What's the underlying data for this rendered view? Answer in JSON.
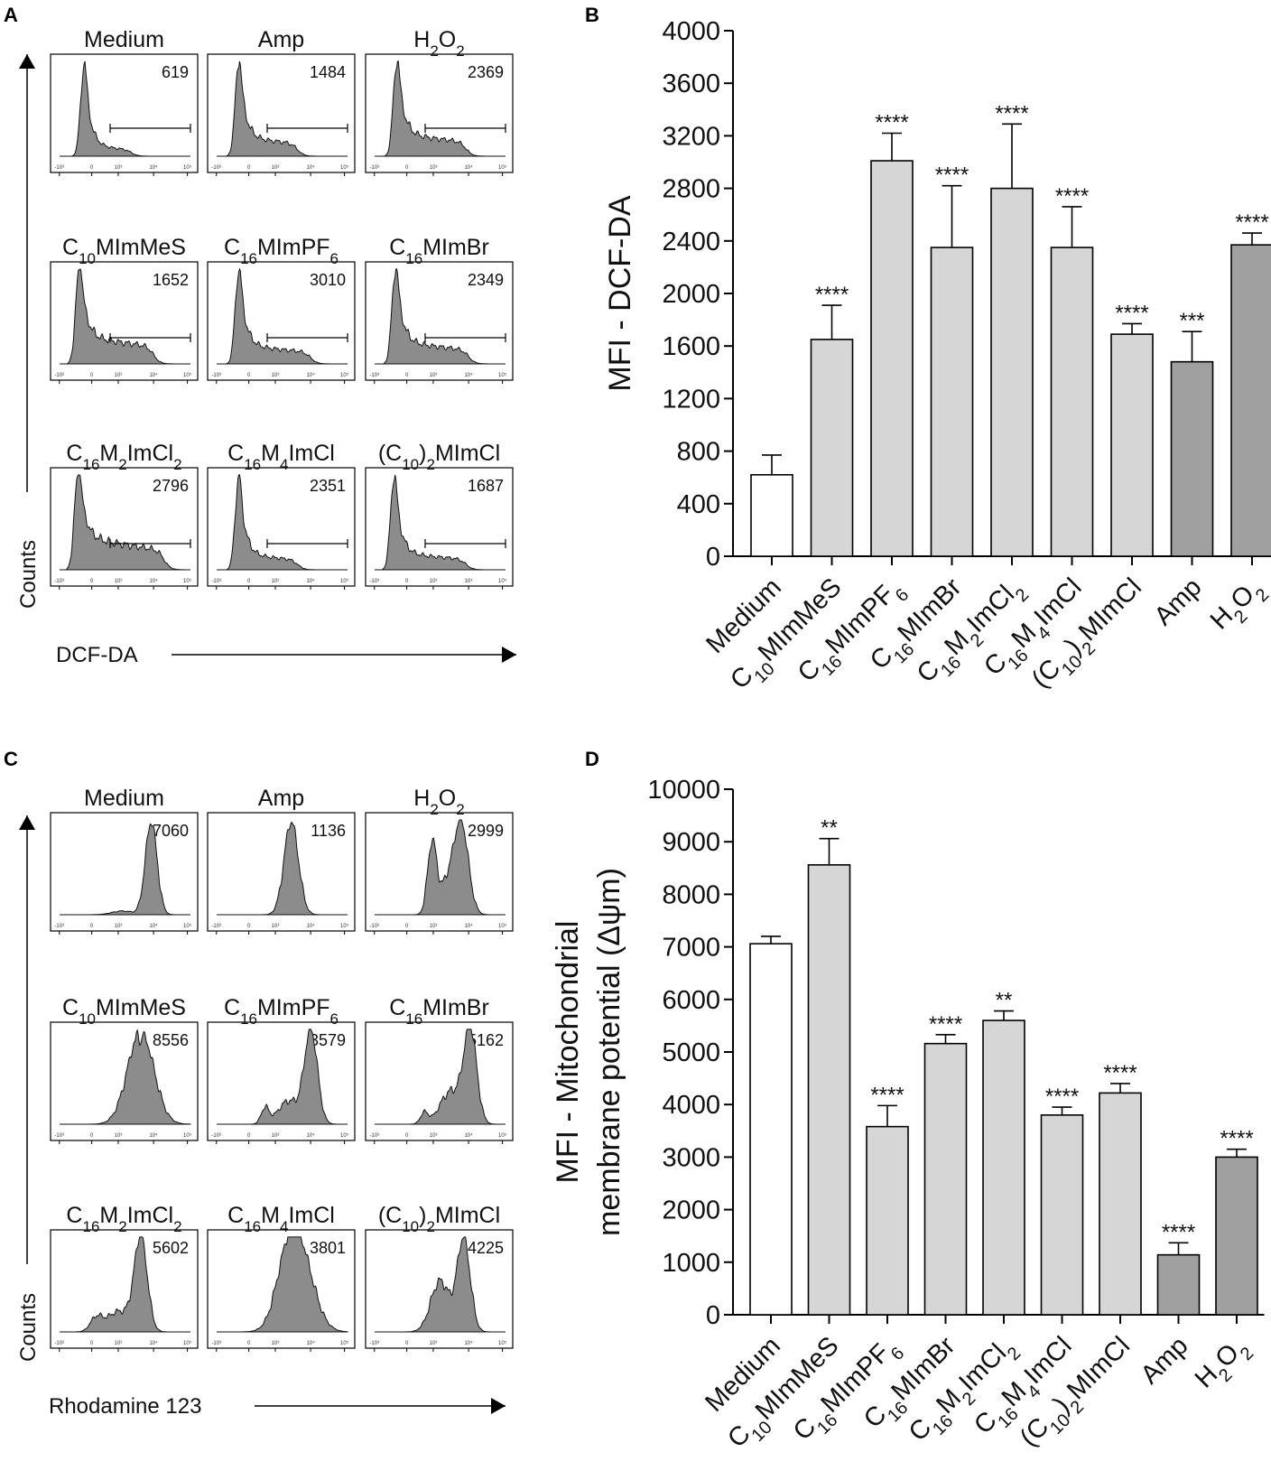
{
  "chart_data": [
    {
      "panel": "A",
      "type": "histogram-grid",
      "x_label": "DCF-DA",
      "y_label": "Counts",
      "panels": [
        {
          "label": "Medium",
          "mfi": "619"
        },
        {
          "label": "Amp",
          "mfi": "1484"
        },
        {
          "label": "H2O2",
          "mfi": "2369"
        },
        {
          "label": "C10MImMeS",
          "mfi": "1652"
        },
        {
          "label": "C16MImPF6",
          "mfi": "3010"
        },
        {
          "label": "C16MImBr",
          "mfi": "2349"
        },
        {
          "label": "C16M2ImCl2",
          "mfi": "2796"
        },
        {
          "label": "C16M4ImCl",
          "mfi": "2351"
        },
        {
          "label": "(C10)2MImCl",
          "mfi": "1687"
        }
      ]
    },
    {
      "panel": "B",
      "type": "bar",
      "ylabel": "MFI - DCF-DA",
      "ylim": [
        0,
        4000
      ],
      "yticks": [
        "0",
        "400",
        "800",
        "1200",
        "1600",
        "2000",
        "2400",
        "2800",
        "3200",
        "3600",
        "4000"
      ],
      "categories": [
        "Medium",
        "C10MImMeS",
        "C16MImPF6",
        "C16MImBr",
        "C16M2ImCl2",
        "C16M4ImCl",
        "(C10)2MImCl",
        "Amp",
        "H2O2"
      ],
      "values": [
        620,
        1650,
        3010,
        2350,
        2800,
        2350,
        1690,
        1480,
        2370
      ],
      "errors": [
        150,
        260,
        210,
        470,
        490,
        310,
        80,
        230,
        90
      ],
      "significance": [
        "",
        "****",
        "****",
        "****",
        "****",
        "****",
        "****",
        "***",
        "****"
      ],
      "colors": {
        "control": "#ffffff",
        "compound": "#d6d6d6",
        "reference": "#a0a0a0"
      }
    },
    {
      "panel": "C",
      "type": "histogram-grid",
      "x_label": "Rhodamine 123",
      "y_label": "Counts",
      "panels": [
        {
          "label": "Medium",
          "mfi": "7060"
        },
        {
          "label": "Amp",
          "mfi": "1136"
        },
        {
          "label": "H2O2",
          "mfi": "2999"
        },
        {
          "label": "C10MImMeS",
          "mfi": "8556"
        },
        {
          "label": "C16MImPF6",
          "mfi": "3579"
        },
        {
          "label": "C16MImBr",
          "mfi": "5162"
        },
        {
          "label": "C16M2ImCl2",
          "mfi": "5602"
        },
        {
          "label": "C16M4ImCl",
          "mfi": "3801"
        },
        {
          "label": "(C10)2MImCl",
          "mfi": "4225"
        }
      ]
    },
    {
      "panel": "D",
      "type": "bar",
      "ylabel_line1": "MFI - Mitochondrial",
      "ylabel_line2": "membrane potential (Δψm)",
      "ylim": [
        0,
        10000
      ],
      "yticks": [
        "0",
        "1000",
        "2000",
        "3000",
        "4000",
        "5000",
        "6000",
        "7000",
        "8000",
        "9000",
        "10000"
      ],
      "categories": [
        "Medium",
        "C10MImMeS",
        "C16MImPF6",
        "C16MImBr",
        "C16M2ImCl2",
        "C16M4ImCl",
        "(C10)2MImCl",
        "Amp",
        "H2O2"
      ],
      "values": [
        7060,
        8560,
        3580,
        5160,
        5600,
        3800,
        4220,
        1140,
        3000
      ],
      "errors": [
        140,
        500,
        400,
        170,
        180,
        150,
        180,
        230,
        150
      ],
      "significance": [
        "",
        "**",
        "****",
        "****",
        "**",
        "****",
        "****",
        "****",
        "****"
      ],
      "colors": {
        "control": "#ffffff",
        "compound": "#d6d6d6",
        "reference": "#a0a0a0"
      }
    }
  ],
  "panel_letters": [
    "A",
    "B",
    "C",
    "D"
  ],
  "flow_axis_ticks": [
    "-10³",
    "0",
    "10³",
    "10⁴",
    "10⁵"
  ]
}
